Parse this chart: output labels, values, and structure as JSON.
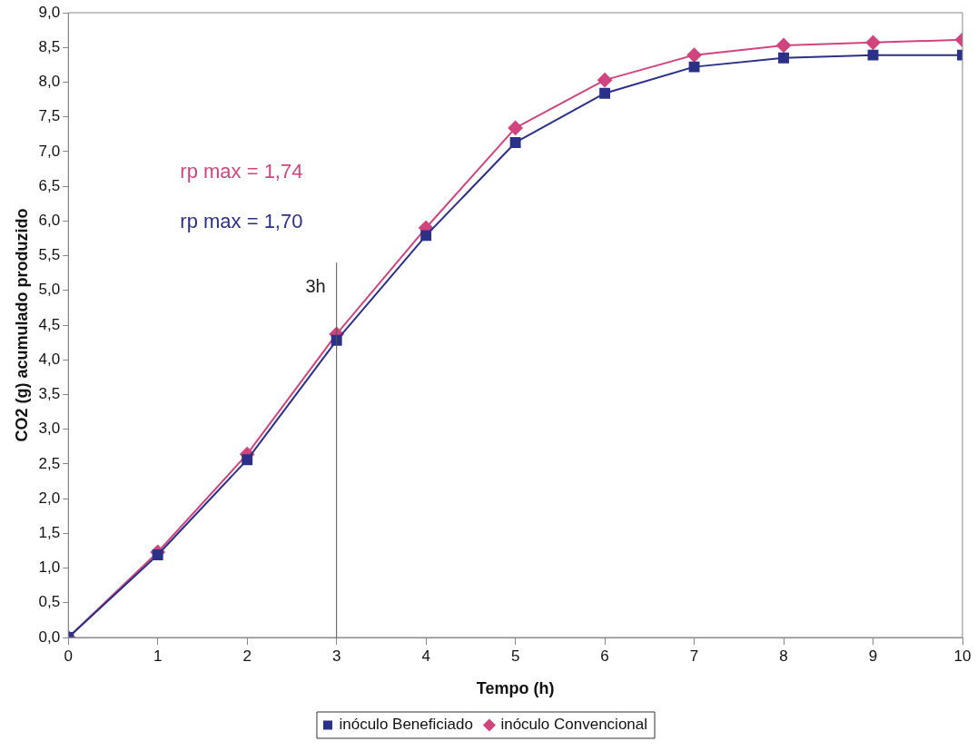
{
  "chart_data": {
    "type": "line",
    "xlabel": "Tempo (h)",
    "ylabel": "CO2 (g) acumulado produzido",
    "x": [
      0,
      1,
      2,
      3,
      4,
      5,
      6,
      7,
      8,
      9,
      10
    ],
    "series": [
      {
        "name": "inóculo Convencional",
        "color": "#d0457e",
        "marker": "diamond",
        "values": [
          0,
          1.23,
          2.64,
          4.37,
          5.9,
          7.34,
          8.03,
          8.39,
          8.53,
          8.57,
          8.61
        ]
      },
      {
        "name": "inóculo Beneficiado",
        "color": "#2b3088",
        "marker": "square",
        "values": [
          0,
          1.19,
          2.56,
          4.28,
          5.79,
          7.13,
          7.84,
          8.22,
          8.35,
          8.39,
          8.39
        ]
      }
    ],
    "xlim": [
      0,
      10
    ],
    "xticks": [
      0,
      1,
      2,
      3,
      4,
      5,
      6,
      7,
      8,
      9,
      10
    ],
    "ylim": [
      0,
      9
    ],
    "yticks": [
      {
        "value": 0,
        "label": "0,0"
      },
      {
        "value": 0.5,
        "label": "0,5"
      },
      {
        "value": 1,
        "label": "1,0"
      },
      {
        "value": 1.5,
        "label": "1,5"
      },
      {
        "value": 2,
        "label": "2,0"
      },
      {
        "value": 2.5,
        "label": "2,5"
      },
      {
        "value": 3,
        "label": "3,0"
      },
      {
        "value": 3.5,
        "label": "3,5"
      },
      {
        "value": 4,
        "label": "4,0"
      },
      {
        "value": 4.5,
        "label": "4,5"
      },
      {
        "value": 5,
        "label": "5,0"
      },
      {
        "value": 5.5,
        "label": "5,5"
      },
      {
        "value": 6,
        "label": "6,0"
      },
      {
        "value": 6.5,
        "label": "6,5"
      },
      {
        "value": 7,
        "label": "7,0"
      },
      {
        "value": 7.5,
        "label": "7,5"
      },
      {
        "value": 8,
        "label": "8,0"
      },
      {
        "value": 8.5,
        "label": "8,5"
      },
      {
        "value": 9,
        "label": "9,0"
      }
    ],
    "ref_lines": [
      {
        "axis": "x",
        "value": 3,
        "label": "3h",
        "color": "#555555"
      }
    ],
    "annotations": [
      "rp max = 1,74",
      "rp max = 1,70"
    ],
    "grid": false,
    "legend": "bottom"
  }
}
